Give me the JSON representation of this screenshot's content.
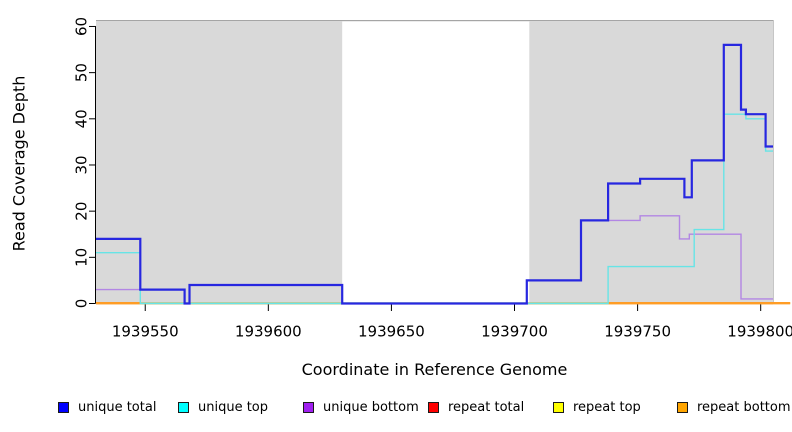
{
  "chart_data": {
    "type": "line",
    "subtype": "step-after",
    "title": "",
    "xlabel": "Coordinate in Reference Genome",
    "ylabel": "Read Coverage Depth",
    "xlim": [
      1939530,
      1939805
    ],
    "ylim": [
      0,
      61.4
    ],
    "x_ticks": [
      "1939550",
      "1939600",
      "1939650",
      "1939700",
      "1939750",
      "1939800"
    ],
    "x_tick_values": [
      1939550,
      1939600,
      1939650,
      1939700,
      1939750,
      1939800
    ],
    "y_ticks": [
      "0",
      "10",
      "20",
      "30",
      "40",
      "50",
      "60"
    ],
    "y_tick_values": [
      0,
      10,
      20,
      30,
      40,
      50,
      60
    ],
    "grid": "off",
    "legend_position": "bottom",
    "plot_background": "#d9d9d9",
    "gap_region": {
      "x1": 1939630,
      "x2": 1939706,
      "color": "#ffffff"
    },
    "zero_line_segments": [
      {
        "x1": 1939530,
        "x2": 1939548,
        "color": "#ff9d25",
        "width": 1.8
      },
      {
        "x1": 1939548,
        "x2": 1939738,
        "color": "#9cd99c",
        "width": 1.4
      },
      {
        "x1": 1939738,
        "x2": 1939812,
        "color": "#ff9d25",
        "width": 1.8
      }
    ],
    "series": [
      {
        "name": "repeat total",
        "color": "#dd2222",
        "line_width": 1.3,
        "end_x": 1939805,
        "points": [
          [
            1939530,
            0
          ]
        ]
      },
      {
        "name": "repeat top",
        "color": "#f0f046",
        "line_width": 1.3,
        "end_x": 1939805,
        "points": [
          [
            1939530,
            0
          ]
        ]
      },
      {
        "name": "repeat bottom",
        "color": "#ff9d25",
        "line_width": 1.8,
        "end_x": 1939812,
        "points": [
          [
            1939530,
            0
          ]
        ]
      },
      {
        "name": "unique bottom",
        "color": "#b286e4",
        "line_width": 1.4,
        "end_x": 1939805,
        "points": [
          [
            1939530,
            3
          ],
          [
            1939566,
            0
          ],
          [
            1939568,
            4
          ],
          [
            1939630,
            0
          ],
          [
            1939705,
            5
          ],
          [
            1939727,
            18
          ],
          [
            1939751,
            19
          ],
          [
            1939767,
            14
          ],
          [
            1939771,
            15
          ],
          [
            1939792,
            1
          ]
        ]
      },
      {
        "name": "unique top",
        "color": "#67e4e6",
        "line_width": 1.4,
        "end_x": 1939805,
        "points": [
          [
            1939530,
            11
          ],
          [
            1939548,
            0
          ],
          [
            1939738,
            8
          ],
          [
            1939773,
            16
          ],
          [
            1939785,
            41
          ],
          [
            1939794,
            40
          ],
          [
            1939802,
            33
          ]
        ]
      },
      {
        "name": "unique total",
        "color": "#2727e0",
        "line_width": 2.2,
        "end_x": 1939805,
        "points": [
          [
            1939530,
            14
          ],
          [
            1939548,
            3
          ],
          [
            1939566,
            0
          ],
          [
            1939568,
            4
          ],
          [
            1939630,
            0
          ],
          [
            1939705,
            5
          ],
          [
            1939727,
            18
          ],
          [
            1939738,
            26
          ],
          [
            1939751,
            27
          ],
          [
            1939769,
            23
          ],
          [
            1939772,
            31
          ],
          [
            1939785,
            56
          ],
          [
            1939792,
            42
          ],
          [
            1939794,
            41
          ],
          [
            1939802,
            34
          ]
        ]
      }
    ]
  },
  "legend": {
    "items": [
      {
        "label": "unique total",
        "color": "#0000ff"
      },
      {
        "label": "unique top",
        "color": "#00ffff"
      },
      {
        "label": "unique bottom",
        "color": "#a020f0"
      },
      {
        "label": "repeat total",
        "color": "#ff0000"
      },
      {
        "label": "repeat top",
        "color": "#ffff00"
      },
      {
        "label": "repeat bottom",
        "color": "#ffa500"
      }
    ]
  }
}
